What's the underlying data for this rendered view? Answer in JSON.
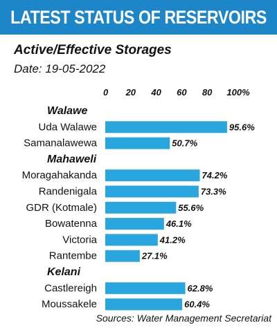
{
  "header": {
    "title": "LATEST STATUS OF RESERVOIRS",
    "subtitle": "Active/Effective Storages",
    "date": "Date: 19-05-2022",
    "source": "Sources: Water Management Secretariat"
  },
  "colors": {
    "banner": "#1d86c8",
    "bar": "#2aa6df"
  },
  "chart_data": {
    "type": "bar",
    "orientation": "horizontal",
    "title": "Active/Effective Storages",
    "xlim": [
      0,
      100
    ],
    "xticks": [
      "0",
      "20",
      "40",
      "60",
      "80",
      "100%"
    ],
    "groups": [
      {
        "name": "Walawe",
        "items": [
          {
            "label": "Uda Walawe",
            "value": 95.6,
            "value_label": "95.6%"
          },
          {
            "label": "Samanalawewa",
            "value": 50.7,
            "value_label": "50.7%"
          }
        ]
      },
      {
        "name": "Mahaweli",
        "items": [
          {
            "label": "Moragahakanda",
            "value": 74.2,
            "value_label": "74.2%"
          },
          {
            "label": "Randenigala",
            "value": 73.3,
            "value_label": "73.3%"
          },
          {
            "label": "GDR (Kotmale)",
            "value": 55.6,
            "value_label": "55.6%"
          },
          {
            "label": "Bowatenna",
            "value": 46.1,
            "value_label": "46.1%"
          },
          {
            "label": "Victoria",
            "value": 41.2,
            "value_label": "41.2%"
          },
          {
            "label": "Rantembe",
            "value": 27.1,
            "value_label": "27.1%"
          }
        ]
      },
      {
        "name": "Kelani",
        "items": [
          {
            "label": "Castlereigh",
            "value": 62.8,
            "value_label": "62.8%"
          },
          {
            "label": "Moussakele",
            "value": 60.4,
            "value_label": "60.4%"
          }
        ]
      }
    ]
  }
}
